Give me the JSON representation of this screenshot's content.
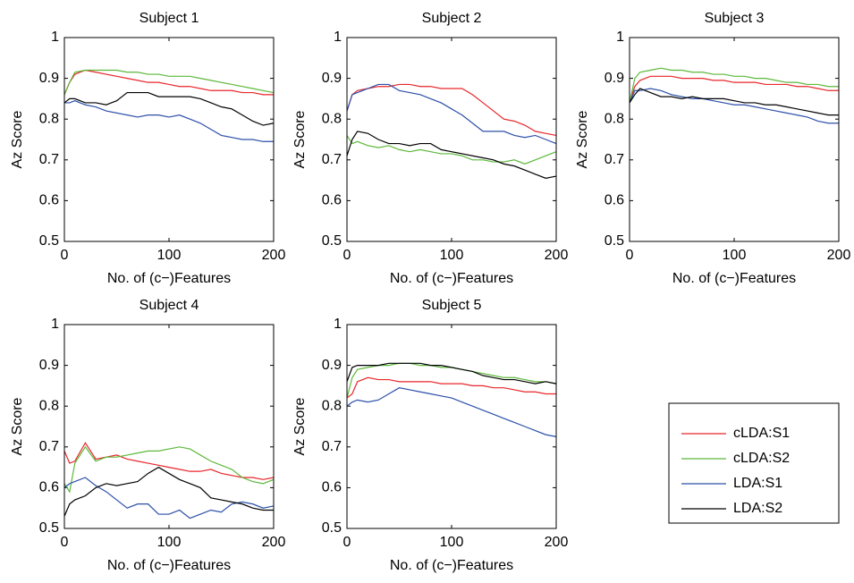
{
  "chart_data": [
    {
      "type": "line",
      "title": "Subject 1",
      "xlabel": "No. of (c−)Features",
      "ylabel": "Az Score",
      "x": [
        0,
        5,
        10,
        20,
        30,
        40,
        50,
        60,
        70,
        80,
        90,
        100,
        110,
        120,
        130,
        140,
        150,
        160,
        170,
        180,
        190,
        200
      ],
      "xlim": [
        0,
        200
      ],
      "ylim": [
        0.5,
        1
      ],
      "xticks": [
        0,
        100,
        200
      ],
      "yticks": [
        0.5,
        0.6,
        0.7,
        0.8,
        0.9,
        1
      ],
      "series": [
        {
          "color": "#e8262a",
          "values": [
            0.86,
            0.89,
            0.91,
            0.92,
            0.915,
            0.91,
            0.905,
            0.9,
            0.895,
            0.89,
            0.89,
            0.885,
            0.88,
            0.88,
            0.875,
            0.87,
            0.87,
            0.87,
            0.865,
            0.865,
            0.86,
            0.86
          ]
        },
        {
          "color": "#5cb83a",
          "values": [
            0.86,
            0.89,
            0.915,
            0.92,
            0.92,
            0.92,
            0.92,
            0.915,
            0.915,
            0.91,
            0.91,
            0.905,
            0.905,
            0.905,
            0.9,
            0.895,
            0.89,
            0.885,
            0.88,
            0.875,
            0.87,
            0.865
          ]
        },
        {
          "color": "#2c4fa8",
          "values": [
            0.84,
            0.84,
            0.845,
            0.835,
            0.83,
            0.82,
            0.815,
            0.81,
            0.805,
            0.81,
            0.81,
            0.805,
            0.81,
            0.8,
            0.79,
            0.775,
            0.76,
            0.755,
            0.75,
            0.75,
            0.745,
            0.745
          ]
        },
        {
          "color": "#000000",
          "values": [
            0.84,
            0.85,
            0.85,
            0.84,
            0.84,
            0.835,
            0.845,
            0.865,
            0.865,
            0.865,
            0.855,
            0.855,
            0.855,
            0.855,
            0.85,
            0.84,
            0.83,
            0.825,
            0.81,
            0.795,
            0.785,
            0.79
          ]
        }
      ]
    },
    {
      "type": "line",
      "title": "Subject 2",
      "xlabel": "No. of (c−)Features",
      "ylabel": "Az Score",
      "x": [
        0,
        5,
        10,
        20,
        30,
        40,
        50,
        60,
        70,
        80,
        90,
        100,
        110,
        120,
        130,
        140,
        150,
        160,
        170,
        180,
        190,
        200
      ],
      "xlim": [
        0,
        200
      ],
      "ylim": [
        0.5,
        1
      ],
      "xticks": [
        0,
        100,
        200
      ],
      "yticks": [
        0.5,
        0.6,
        0.7,
        0.8,
        0.9,
        1
      ],
      "series": [
        {
          "color": "#e8262a",
          "values": [
            0.82,
            0.86,
            0.87,
            0.875,
            0.88,
            0.88,
            0.885,
            0.885,
            0.88,
            0.88,
            0.875,
            0.875,
            0.875,
            0.86,
            0.84,
            0.82,
            0.8,
            0.795,
            0.785,
            0.77,
            0.765,
            0.76
          ]
        },
        {
          "color": "#5cb83a",
          "values": [
            0.76,
            0.74,
            0.745,
            0.735,
            0.73,
            0.735,
            0.725,
            0.72,
            0.725,
            0.72,
            0.715,
            0.715,
            0.71,
            0.7,
            0.7,
            0.695,
            0.695,
            0.7,
            0.69,
            0.7,
            0.71,
            0.72
          ]
        },
        {
          "color": "#2c4fa8",
          "values": [
            0.82,
            0.86,
            0.865,
            0.875,
            0.885,
            0.885,
            0.87,
            0.865,
            0.86,
            0.85,
            0.84,
            0.825,
            0.81,
            0.79,
            0.77,
            0.77,
            0.77,
            0.76,
            0.755,
            0.76,
            0.75,
            0.74
          ]
        },
        {
          "color": "#000000",
          "values": [
            0.71,
            0.75,
            0.77,
            0.765,
            0.75,
            0.74,
            0.74,
            0.735,
            0.74,
            0.74,
            0.725,
            0.72,
            0.715,
            0.71,
            0.705,
            0.7,
            0.69,
            0.685,
            0.675,
            0.665,
            0.655,
            0.66
          ]
        }
      ]
    },
    {
      "type": "line",
      "title": "Subject 3",
      "xlabel": "No. of (c−)Features",
      "ylabel": "Az Score",
      "x": [
        0,
        5,
        10,
        20,
        30,
        40,
        50,
        60,
        70,
        80,
        90,
        100,
        110,
        120,
        130,
        140,
        150,
        160,
        170,
        180,
        190,
        200
      ],
      "xlim": [
        0,
        200
      ],
      "ylim": [
        0.5,
        1
      ],
      "xticks": [
        0,
        100,
        200
      ],
      "yticks": [
        0.5,
        0.6,
        0.7,
        0.8,
        0.9,
        1
      ],
      "series": [
        {
          "color": "#e8262a",
          "values": [
            0.84,
            0.88,
            0.895,
            0.905,
            0.905,
            0.905,
            0.9,
            0.9,
            0.9,
            0.895,
            0.895,
            0.89,
            0.89,
            0.89,
            0.885,
            0.885,
            0.885,
            0.88,
            0.88,
            0.875,
            0.87,
            0.87
          ]
        },
        {
          "color": "#5cb83a",
          "values": [
            0.84,
            0.9,
            0.915,
            0.92,
            0.925,
            0.92,
            0.92,
            0.915,
            0.915,
            0.91,
            0.91,
            0.905,
            0.905,
            0.9,
            0.9,
            0.895,
            0.89,
            0.89,
            0.885,
            0.885,
            0.88,
            0.88
          ]
        },
        {
          "color": "#2c4fa8",
          "values": [
            0.84,
            0.87,
            0.87,
            0.875,
            0.87,
            0.86,
            0.855,
            0.85,
            0.85,
            0.845,
            0.84,
            0.835,
            0.835,
            0.83,
            0.825,
            0.82,
            0.815,
            0.81,
            0.805,
            0.795,
            0.79,
            0.79
          ]
        },
        {
          "color": "#000000",
          "values": [
            0.84,
            0.86,
            0.875,
            0.865,
            0.855,
            0.855,
            0.85,
            0.855,
            0.85,
            0.85,
            0.85,
            0.845,
            0.84,
            0.84,
            0.835,
            0.835,
            0.83,
            0.825,
            0.82,
            0.815,
            0.81,
            0.81
          ]
        }
      ]
    },
    {
      "type": "line",
      "title": "Subject 4",
      "xlabel": "No. of (c−)Features",
      "ylabel": "Az Score",
      "x": [
        0,
        5,
        10,
        20,
        30,
        40,
        50,
        60,
        70,
        80,
        90,
        100,
        110,
        120,
        130,
        140,
        150,
        160,
        170,
        180,
        190,
        200
      ],
      "xlim": [
        0,
        200
      ],
      "ylim": [
        0.5,
        1
      ],
      "xticks": [
        0,
        100,
        200
      ],
      "yticks": [
        0.5,
        0.6,
        0.7,
        0.8,
        0.9,
        1
      ],
      "series": [
        {
          "color": "#e8262a",
          "values": [
            0.69,
            0.66,
            0.665,
            0.71,
            0.67,
            0.675,
            0.68,
            0.67,
            0.665,
            0.66,
            0.655,
            0.65,
            0.645,
            0.64,
            0.64,
            0.645,
            0.635,
            0.63,
            0.625,
            0.625,
            0.62,
            0.625
          ]
        },
        {
          "color": "#5cb83a",
          "values": [
            0.61,
            0.59,
            0.66,
            0.7,
            0.665,
            0.675,
            0.675,
            0.68,
            0.685,
            0.69,
            0.69,
            0.695,
            0.7,
            0.695,
            0.68,
            0.665,
            0.655,
            0.645,
            0.625,
            0.615,
            0.61,
            0.62
          ]
        },
        {
          "color": "#2c4fa8",
          "values": [
            0.6,
            0.61,
            0.615,
            0.625,
            0.605,
            0.59,
            0.57,
            0.55,
            0.56,
            0.56,
            0.535,
            0.535,
            0.545,
            0.525,
            0.535,
            0.545,
            0.54,
            0.56,
            0.565,
            0.56,
            0.55,
            0.555
          ]
        },
        {
          "color": "#000000",
          "values": [
            0.53,
            0.56,
            0.57,
            0.58,
            0.6,
            0.61,
            0.605,
            0.61,
            0.615,
            0.635,
            0.65,
            0.635,
            0.62,
            0.61,
            0.6,
            0.575,
            0.57,
            0.565,
            0.56,
            0.55,
            0.545,
            0.545
          ]
        }
      ]
    },
    {
      "type": "line",
      "title": "Subject 5",
      "xlabel": "No. of (c−)Features",
      "ylabel": "Az Score",
      "x": [
        0,
        5,
        10,
        20,
        30,
        40,
        50,
        60,
        70,
        80,
        90,
        100,
        110,
        120,
        130,
        140,
        150,
        160,
        170,
        180,
        190,
        200
      ],
      "xlim": [
        0,
        200
      ],
      "ylim": [
        0.5,
        1
      ],
      "xticks": [
        0,
        100,
        200
      ],
      "yticks": [
        0.5,
        0.6,
        0.7,
        0.8,
        0.9,
        1
      ],
      "series": [
        {
          "name": "cLDA:S1",
          "color": "#e8262a",
          "values": [
            0.82,
            0.83,
            0.86,
            0.87,
            0.865,
            0.865,
            0.86,
            0.86,
            0.86,
            0.86,
            0.855,
            0.855,
            0.855,
            0.85,
            0.85,
            0.845,
            0.845,
            0.84,
            0.835,
            0.835,
            0.83,
            0.83
          ]
        },
        {
          "name": "cLDA:S2",
          "color": "#5cb83a",
          "values": [
            0.82,
            0.87,
            0.89,
            0.895,
            0.9,
            0.9,
            0.905,
            0.905,
            0.9,
            0.9,
            0.895,
            0.895,
            0.89,
            0.885,
            0.88,
            0.875,
            0.87,
            0.87,
            0.865,
            0.86,
            0.86,
            0.855
          ]
        },
        {
          "name": "LDA:S1",
          "color": "#2c4fa8",
          "values": [
            0.8,
            0.81,
            0.815,
            0.81,
            0.815,
            0.83,
            0.845,
            0.84,
            0.835,
            0.83,
            0.825,
            0.82,
            0.81,
            0.8,
            0.79,
            0.78,
            0.77,
            0.76,
            0.75,
            0.74,
            0.73,
            0.725
          ]
        },
        {
          "name": "LDA:S2",
          "color": "#000000",
          "values": [
            0.86,
            0.895,
            0.9,
            0.9,
            0.9,
            0.905,
            0.905,
            0.905,
            0.905,
            0.9,
            0.9,
            0.895,
            0.89,
            0.885,
            0.875,
            0.87,
            0.865,
            0.865,
            0.86,
            0.855,
            0.86,
            0.855
          ]
        }
      ]
    }
  ]
}
